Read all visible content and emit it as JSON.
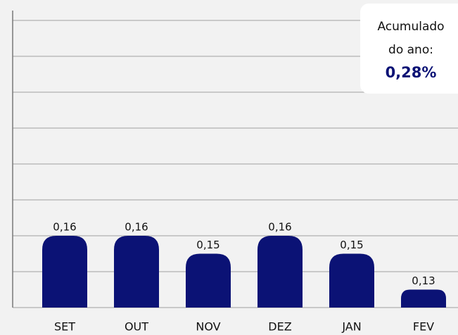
{
  "chart_data": {
    "type": "bar",
    "categories": [
      "SET",
      "OUT",
      "NOV",
      "DEZ",
      "JAN",
      "FEV"
    ],
    "values": [
      0.16,
      0.16,
      0.15,
      0.16,
      0.15,
      0.13
    ],
    "value_labels": [
      "0,16",
      "0,16",
      "0,15",
      "0,16",
      "0,15",
      "0,13"
    ],
    "color": "#0b1275",
    "ylim": [
      0.12,
      0.28
    ],
    "yticks": [
      0.12,
      0.14,
      0.16,
      0.18,
      0.2,
      0.22,
      0.24,
      0.26,
      0.28
    ],
    "grid": true,
    "annotation": {
      "lines": [
        "Acumulado",
        "do ano:"
      ],
      "value": "0,28%"
    }
  }
}
